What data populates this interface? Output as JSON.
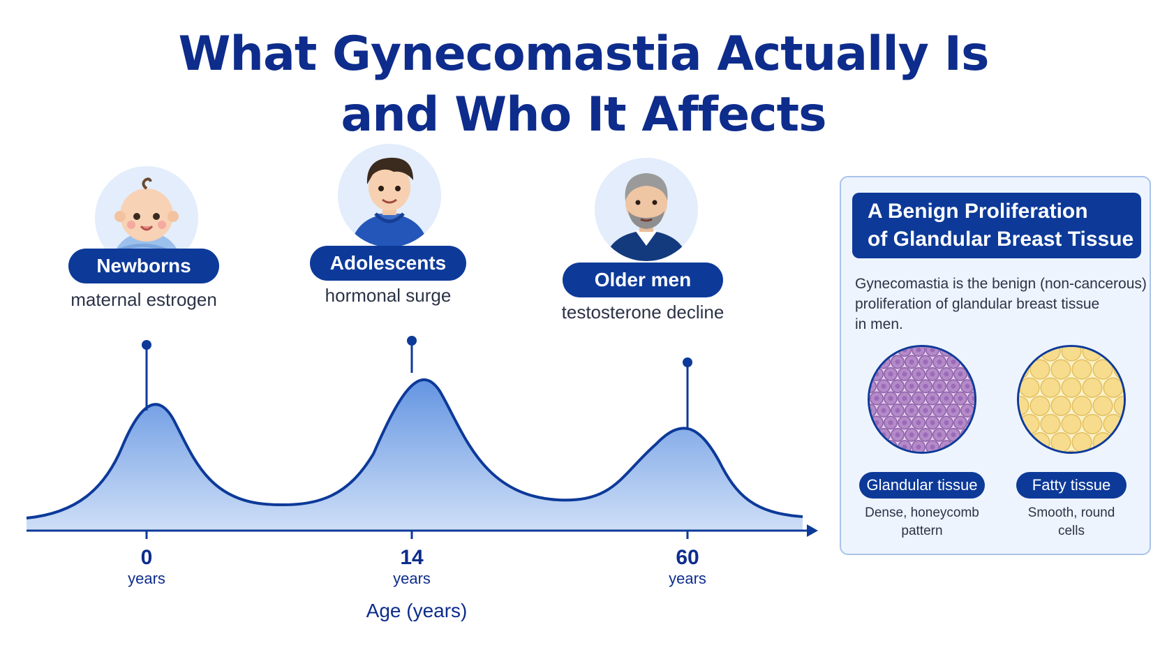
{
  "title": {
    "line1": "What Gynecomastia Actually Is",
    "line2": "and Who It Affects"
  },
  "groups": [
    {
      "label": "Newborns",
      "cause": "maternal estrogen",
      "avatar": "baby-icon"
    },
    {
      "label": "Adolescents",
      "cause": "hormonal surge",
      "avatar": "teen-boy-icon"
    },
    {
      "label": "Older men",
      "cause": "testosterone decline",
      "avatar": "older-man-icon"
    }
  ],
  "chart_data": {
    "type": "area",
    "xlabel": "Age (years)",
    "peaks": [
      {
        "age": "0",
        "unit": "years",
        "relative_height": 0.69
      },
      {
        "age": "14",
        "unit": "years",
        "relative_height": 1.0
      },
      {
        "age": "60",
        "unit": "years",
        "relative_height": 0.6
      }
    ]
  },
  "panel": {
    "title_line1": "A Benign Proliferation",
    "title_line2": "of Glandular Breast Tissue",
    "description_lines": [
      "Gynecomastia is the benign (non-cancerous)",
      "proliferation of glandular breast tissue",
      "in men."
    ],
    "tissues": [
      {
        "label": "Glandular tissue",
        "desc_line1": "Dense, honeycomb",
        "desc_line2": "pattern"
      },
      {
        "label": "Fatty tissue",
        "desc_line1": "Smooth, round",
        "desc_line2": "cells"
      }
    ]
  },
  "colors": {
    "navy": "#0d3a99",
    "title": "#0d2c8c",
    "area_fill": "#5b8fe0",
    "panel_bg": "#eef4fd",
    "glandular": "#b48ac8",
    "fatty": "#f6dc8c"
  }
}
